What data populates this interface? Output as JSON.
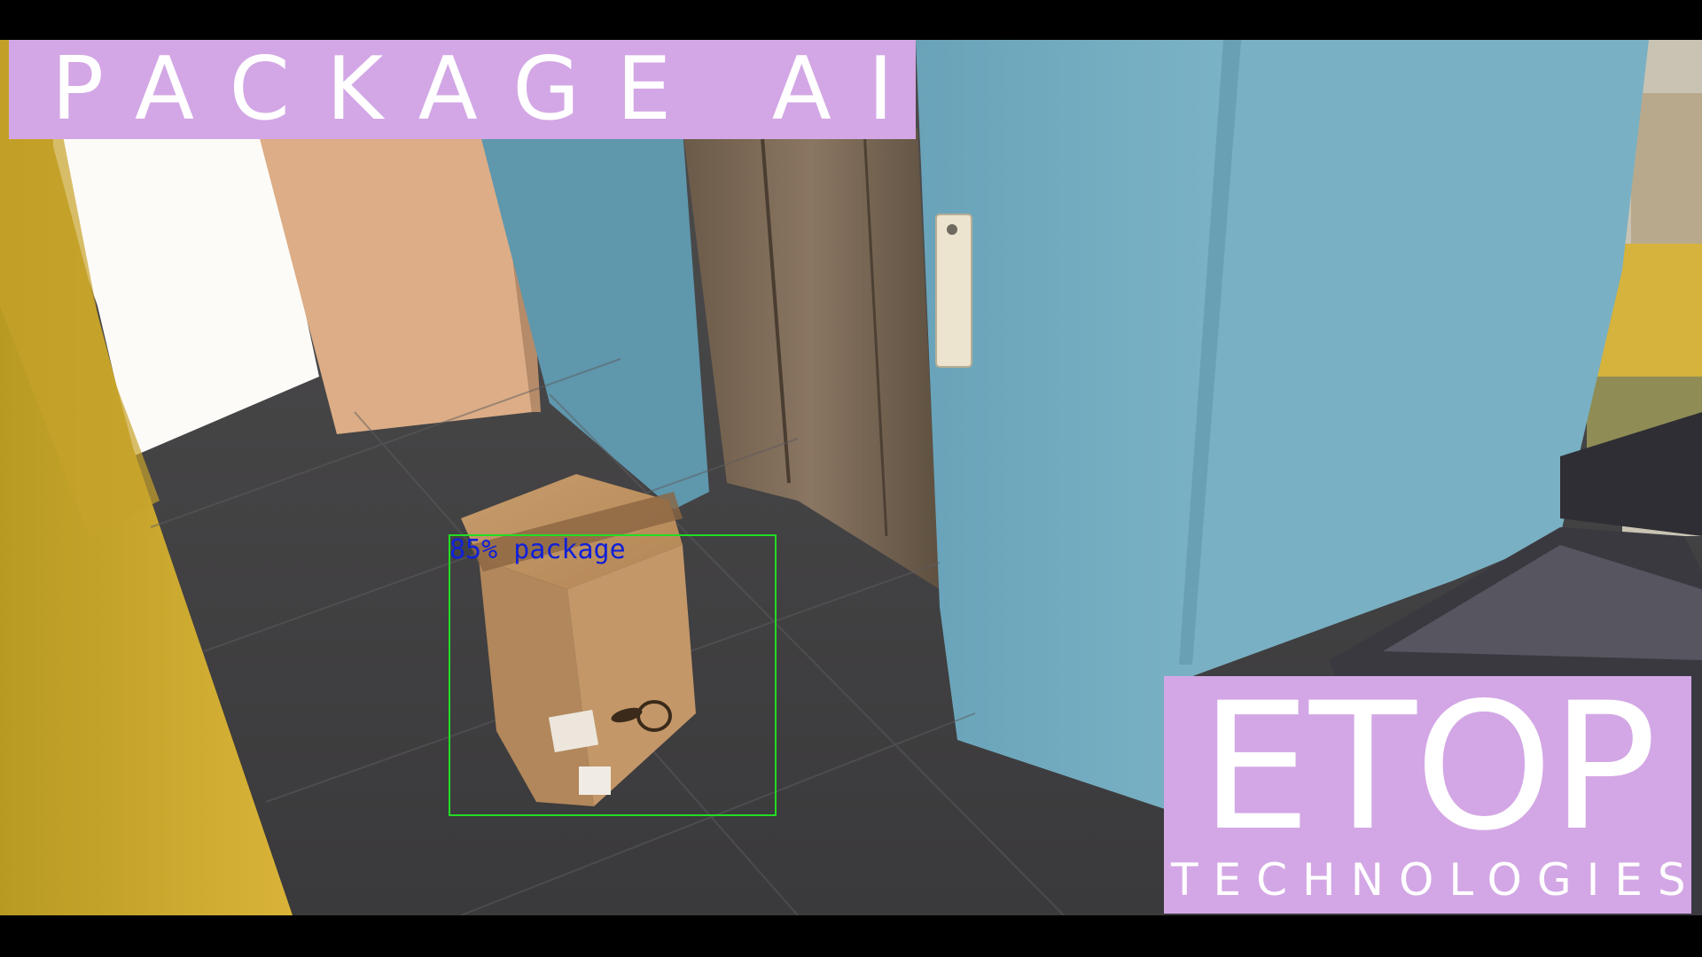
{
  "title_banner": {
    "text": "PACKAGE AI"
  },
  "logo": {
    "main": "ETOP",
    "sub": "TECHNOLOGIES"
  },
  "detection": {
    "label": "85% package",
    "confidence": 85,
    "class": "package"
  },
  "colors": {
    "banner_bg": "#d3a7e5",
    "box_outline": "#22dd22",
    "label_text": "#1020d8",
    "letterbox": "#000000"
  }
}
